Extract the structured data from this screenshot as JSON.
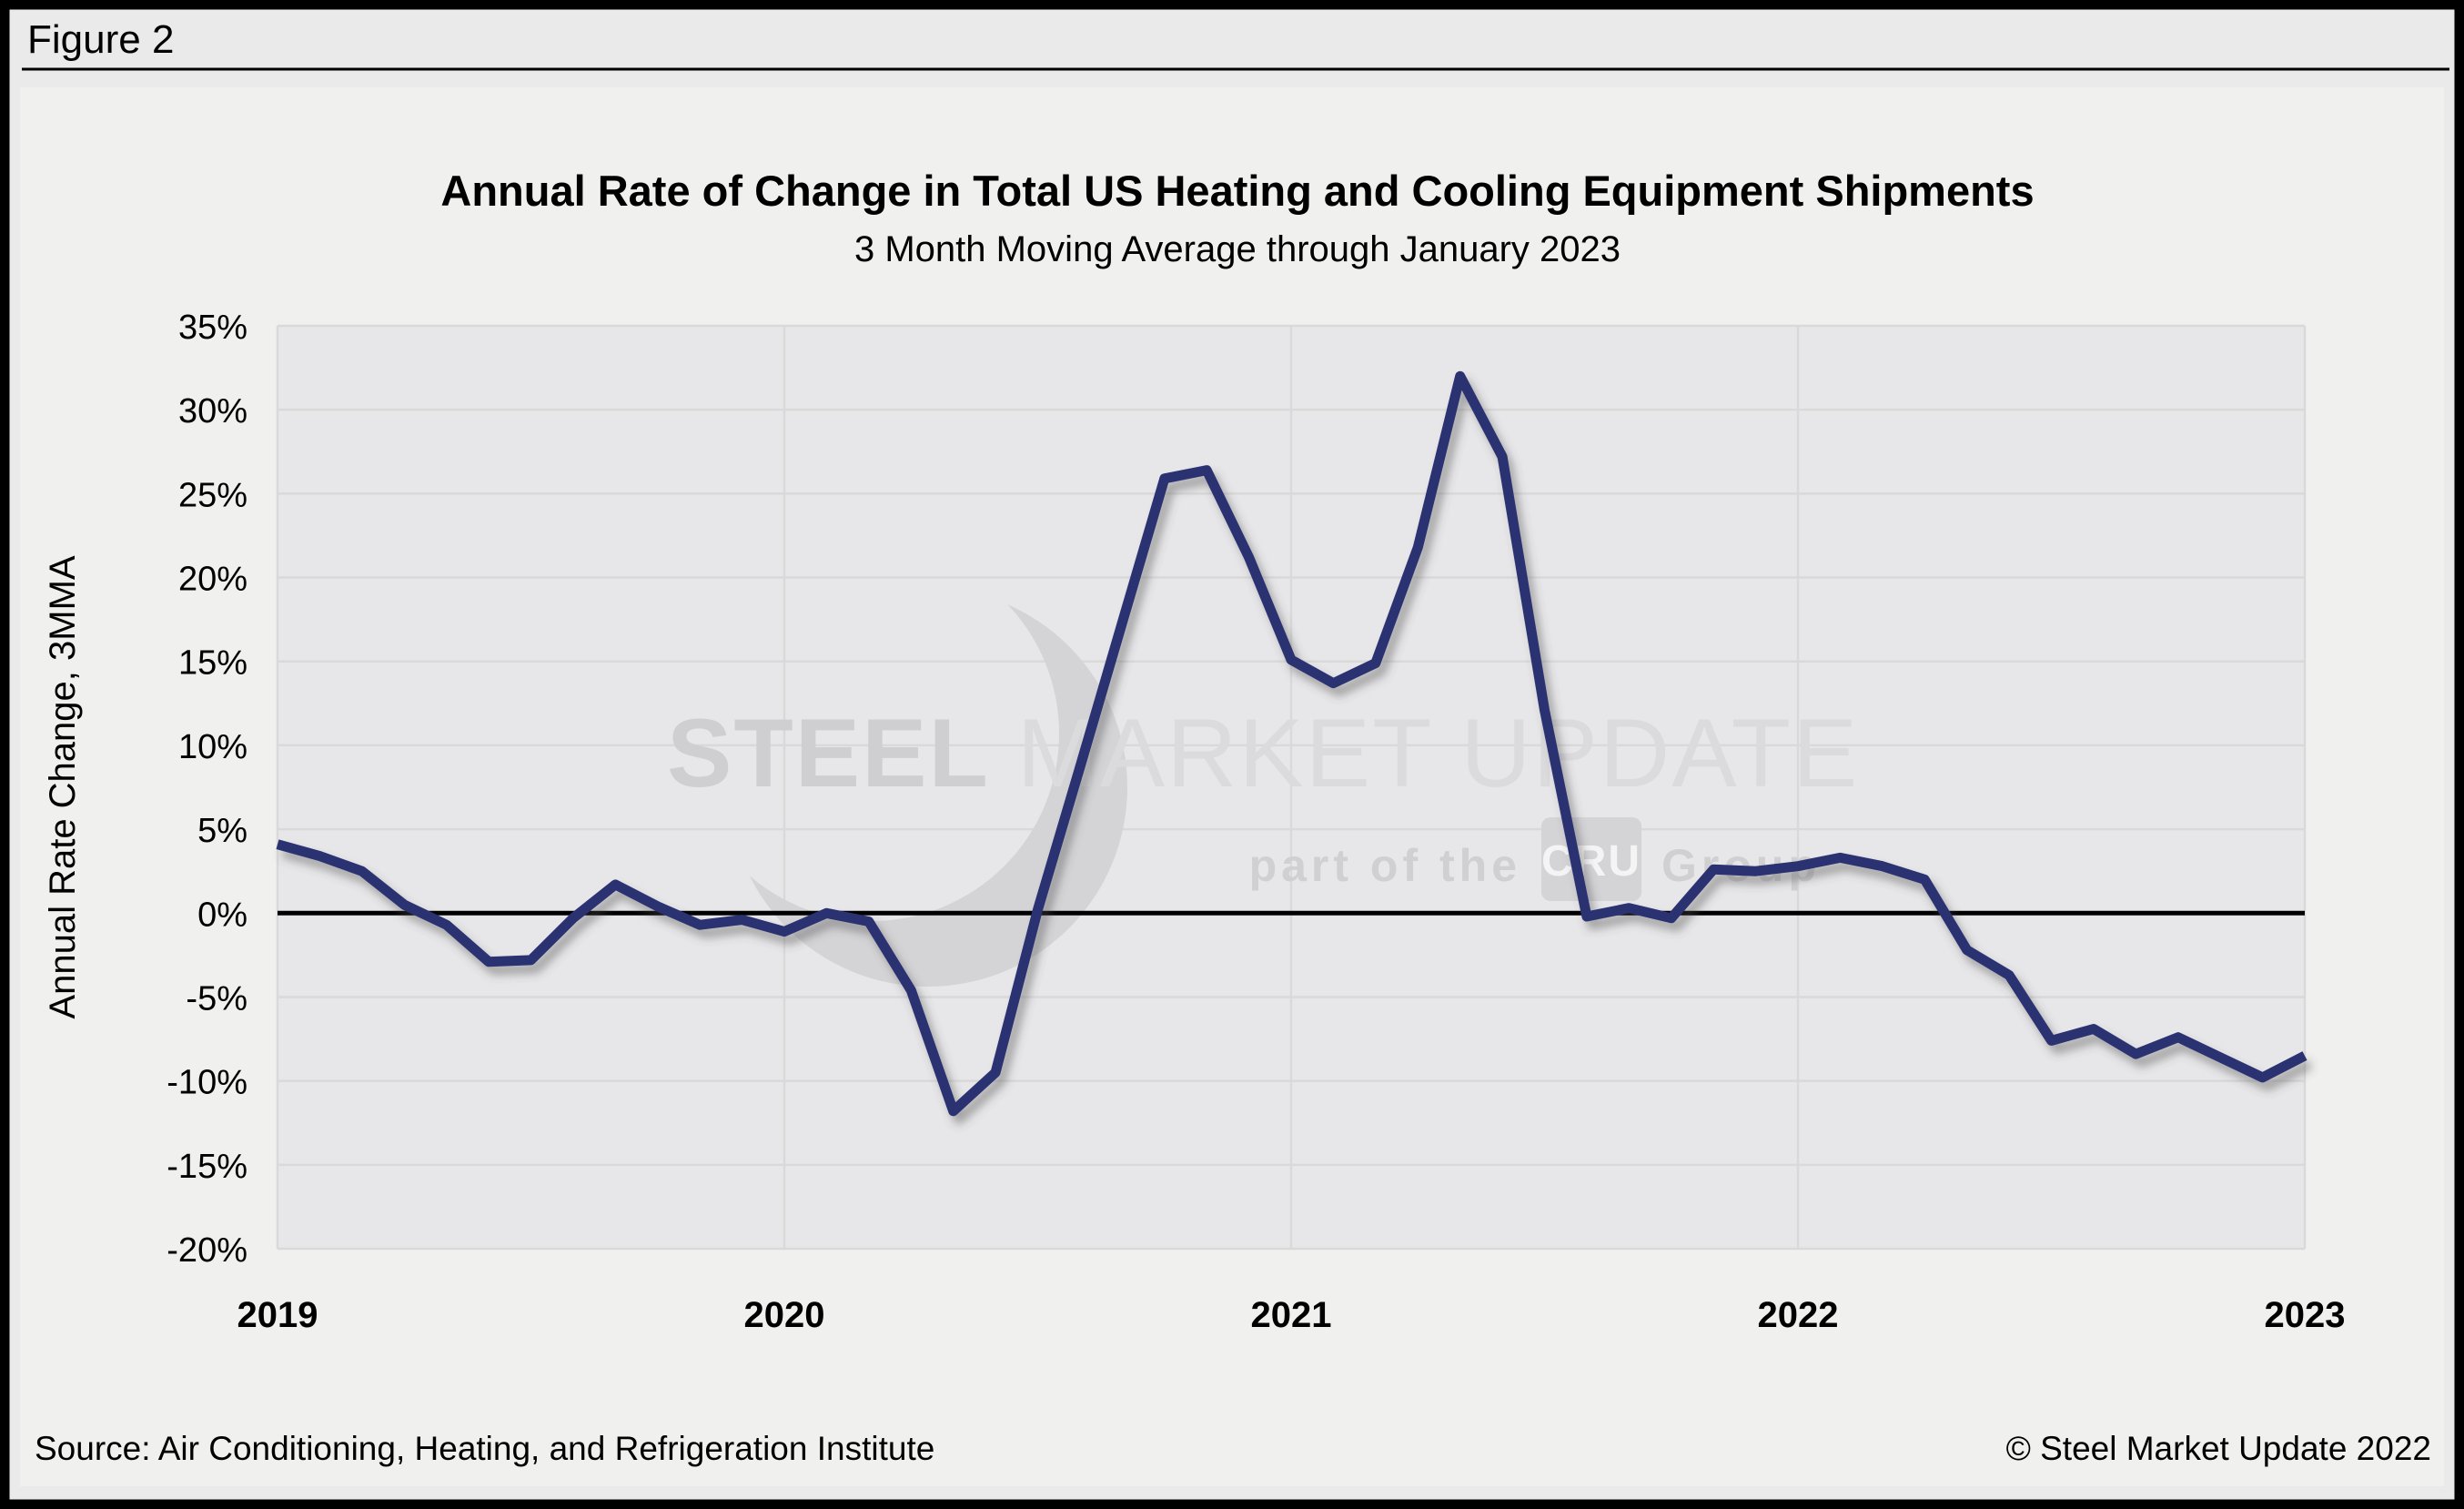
{
  "figure_label": "Figure 2",
  "chart_data": {
    "type": "line",
    "title": "Annual Rate of Change in Total US Heating and Cooling Equipment Shipments",
    "subtitle": "3 Month Moving Average through January 2023",
    "xlabel": "",
    "ylabel": "Annual Rate Change, 3MMA",
    "ylim": [
      -20,
      35
    ],
    "y_tick_values": [
      35,
      30,
      25,
      20,
      15,
      10,
      5,
      0,
      -5,
      -10,
      -15,
      -20
    ],
    "y_tick_labels": [
      "35%",
      "30%",
      "25%",
      "20%",
      "15%",
      "10%",
      "5%",
      "0%",
      "-5%",
      "-10%",
      "-15%",
      "-20%"
    ],
    "x_tick_labels": [
      "2019",
      "2020",
      "2021",
      "2022",
      "2023"
    ],
    "x_monthly_range": [
      "Jan 2019",
      "Jan 2023"
    ],
    "grid": true,
    "legend": "none",
    "zero_line": true,
    "series": [
      {
        "name": "Annual rate of change, 3MMA",
        "color": "#2b3272",
        "values": [
          4.1,
          3.4,
          2.5,
          0.5,
          -0.7,
          -2.9,
          -2.8,
          -0.3,
          1.7,
          0.4,
          -0.7,
          -0.4,
          -1.1,
          0.0,
          -0.5,
          -4.6,
          -11.8,
          -9.5,
          0.2,
          8.7,
          17.3,
          25.9,
          26.4,
          21.2,
          15.1,
          13.7,
          14.9,
          21.8,
          32.0,
          27.2,
          12.1,
          -0.2,
          0.3,
          -0.3,
          2.6,
          2.5,
          2.8,
          3.3,
          2.8,
          2.0,
          -2.2,
          -3.7,
          -7.6,
          -6.9,
          -8.4,
          -7.4,
          -8.6,
          -9.8,
          -8.5
        ]
      }
    ]
  },
  "watermark": {
    "steel": "STEEL ",
    "market_update": "MARKET UPDATE",
    "part_of_the": "part of the",
    "cru": "CRU",
    "group": "Group"
  },
  "footer": {
    "source": "Source: Air Conditioning, Heating, and Refrigeration Institute",
    "copyright": "© Steel Market Update 2022"
  },
  "colors": {
    "line": "#2b3272",
    "zero_line": "#000000",
    "grid": "#d9d9d9",
    "plot_bg": "#e7e7e9",
    "panel_bg": "#f0f0ef",
    "page_bg": "#eaeaea",
    "watermark": "#d4d4d7",
    "frame": "#000000"
  }
}
